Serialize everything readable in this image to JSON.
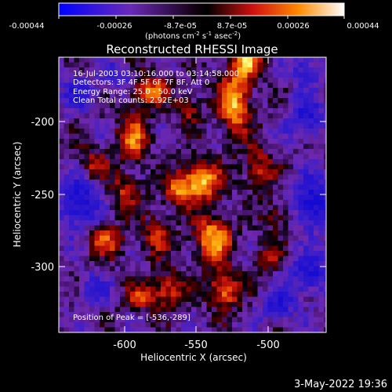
{
  "colorbar": {
    "ticks": [
      "-0.00044",
      "-0.00026",
      "-8.7e-05",
      "8.7e-05",
      "0.00026",
      "0.00044"
    ],
    "unit_main": "(photons cm",
    "unit_exp1": "-2",
    "unit_mid": " s",
    "unit_exp2": "-1",
    "unit_end": " asec",
    "unit_exp3": "-2",
    "unit_close": ")"
  },
  "plot": {
    "title": "Reconstructed RHESSI Image",
    "xlabel": "Heliocentric X (arcsec)",
    "ylabel": "Heliocentric Y (arcsec)",
    "x_ticks": [
      "-600",
      "-550",
      "-500"
    ],
    "y_ticks": [
      "-200",
      "-250",
      "-300"
    ],
    "xlim": [
      -648,
      -475
    ],
    "ylim": [
      -347,
      -165
    ]
  },
  "annotations": {
    "line1": "16-Jul-2003 03:10:16.000 to 03:14:58.000",
    "line2": "Detectors: 3F 4F 5F 6F 7F 8F, Att 0",
    "line3": "Energy Range: 25.0 - 50.0 keV",
    "line4": "Clean     Total counts: 2.92E+03",
    "peak": "Position of Peak = [-536,-289]"
  },
  "footer": {
    "timestamp": "3-May-2022 19:36"
  },
  "colors": {
    "low": "#1c10c8",
    "mid": "#7a2ab0",
    "zero": "#000000",
    "high1": "#c81010",
    "high2": "#ff8800",
    "peak": "#ffff80"
  }
}
